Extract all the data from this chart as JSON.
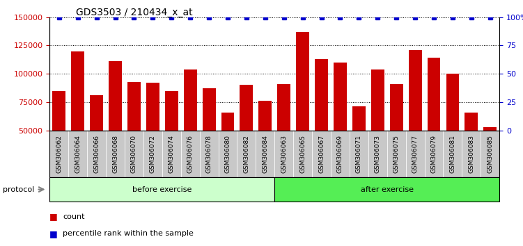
{
  "title": "GDS3503 / 210434_x_at",
  "categories": [
    "GSM306062",
    "GSM306064",
    "GSM306066",
    "GSM306068",
    "GSM306070",
    "GSM306072",
    "GSM306074",
    "GSM306076",
    "GSM306078",
    "GSM306080",
    "GSM306082",
    "GSM306084",
    "GSM306063",
    "GSM306065",
    "GSM306067",
    "GSM306069",
    "GSM306071",
    "GSM306073",
    "GSM306075",
    "GSM306077",
    "GSM306079",
    "GSM306081",
    "GSM306083",
    "GSM306085"
  ],
  "values": [
    85000,
    120000,
    81000,
    111000,
    93000,
    92000,
    85000,
    104000,
    87000,
    66000,
    90000,
    76000,
    91000,
    137000,
    113000,
    110000,
    71000,
    104000,
    91000,
    121000,
    114000,
    100000,
    66000,
    53000
  ],
  "percentile_values": [
    100,
    100,
    100,
    100,
    100,
    100,
    100,
    100,
    100,
    100,
    100,
    100,
    100,
    100,
    100,
    100,
    100,
    100,
    100,
    100,
    100,
    100,
    100,
    100
  ],
  "bar_color": "#cc0000",
  "dot_color": "#0000cc",
  "before_count": 12,
  "after_count": 12,
  "before_label": "before exercise",
  "after_label": "after exercise",
  "protocol_label": "protocol",
  "before_color": "#ccffcc",
  "after_color": "#55ee55",
  "label_bg_color": "#c8c8c8",
  "ylim_left": [
    50000,
    150000
  ],
  "ylim_right": [
    0,
    100
  ],
  "yticks_left": [
    50000,
    75000,
    100000,
    125000,
    150000
  ],
  "yticks_right": [
    0,
    25,
    50,
    75,
    100
  ],
  "ytick_labels_right": [
    "0",
    "25",
    "50",
    "75",
    "100%"
  ],
  "left_tick_color": "#cc0000",
  "right_tick_color": "#0000cc",
  "legend_count": "count",
  "legend_percentile": "percentile rank within the sample"
}
